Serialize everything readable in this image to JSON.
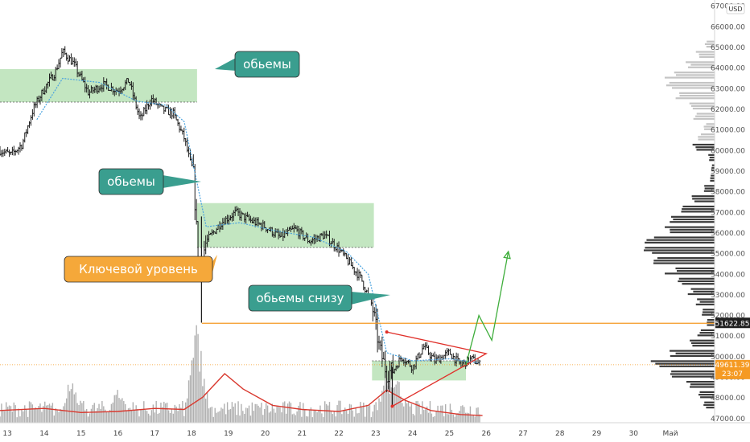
{
  "chart_data": {
    "type": "candlestick",
    "currency_label": "USD",
    "y_range": [
      46800,
      67300
    ],
    "y_ticks": [
      47000,
      48000,
      49000,
      50000,
      51000,
      52000,
      53000,
      54000,
      55000,
      56000,
      57000,
      58000,
      59000,
      60000,
      61000,
      62000,
      63000,
      64000,
      65000,
      66000,
      67000
    ],
    "x_range": [
      12.8,
      32.2
    ],
    "x_ticks": [
      {
        "day": 13,
        "label": "13"
      },
      {
        "day": 14,
        "label": "14"
      },
      {
        "day": 15,
        "label": "15"
      },
      {
        "day": 16,
        "label": "16"
      },
      {
        "day": 17,
        "label": "17"
      },
      {
        "day": 18,
        "label": "18"
      },
      {
        "day": 19,
        "label": "19"
      },
      {
        "day": 20,
        "label": "20"
      },
      {
        "day": 21,
        "label": "21"
      },
      {
        "day": 22,
        "label": "22"
      },
      {
        "day": 23,
        "label": "23"
      },
      {
        "day": 24,
        "label": "24"
      },
      {
        "day": 25,
        "label": "25"
      },
      {
        "day": 26,
        "label": "26"
      },
      {
        "day": 27,
        "label": "27"
      },
      {
        "day": 28,
        "label": "28"
      },
      {
        "day": 29,
        "label": "29"
      },
      {
        "day": 30,
        "label": "30"
      },
      {
        "day": 31,
        "label": "Май"
      }
    ],
    "price_path": [
      [
        12.8,
        60000
      ],
      [
        13.1,
        59800
      ],
      [
        13.4,
        60300
      ],
      [
        13.7,
        62000
      ],
      [
        14.0,
        63000
      ],
      [
        14.3,
        63800
      ],
      [
        14.5,
        64800
      ],
      [
        14.8,
        64200
      ],
      [
        15.2,
        62800
      ],
      [
        15.6,
        63200
      ],
      [
        16.0,
        62900
      ],
      [
        16.3,
        63400
      ],
      [
        16.6,
        61500
      ],
      [
        16.9,
        62500
      ],
      [
        17.2,
        62000
      ],
      [
        17.5,
        61800
      ],
      [
        17.8,
        60600
      ],
      [
        18.05,
        58800
      ],
      [
        18.2,
        54200
      ],
      [
        18.4,
        55600
      ],
      [
        18.8,
        56500
      ],
      [
        19.2,
        57000
      ],
      [
        19.6,
        56600
      ],
      [
        20.0,
        56300
      ],
      [
        20.4,
        55800
      ],
      [
        20.8,
        56200
      ],
      [
        21.2,
        55600
      ],
      [
        21.6,
        55900
      ],
      [
        22.0,
        55200
      ],
      [
        22.3,
        54500
      ],
      [
        22.6,
        53800
      ],
      [
        22.9,
        52500
      ],
      [
        23.1,
        50400
      ],
      [
        23.3,
        49200
      ],
      [
        23.5,
        49400
      ],
      [
        23.7,
        50000
      ],
      [
        24.0,
        49500
      ],
      [
        24.3,
        50500
      ],
      [
        24.6,
        49800
      ],
      [
        25.0,
        50200
      ],
      [
        25.3,
        49600
      ],
      [
        25.6,
        49900
      ],
      [
        25.85,
        49600
      ]
    ],
    "vwap_path": [
      [
        13.8,
        61500
      ],
      [
        14.5,
        63500
      ],
      [
        15.5,
        63300
      ],
      [
        16.5,
        62400
      ],
      [
        17.3,
        62200
      ],
      [
        17.8,
        61400
      ],
      [
        18.4,
        56300
      ],
      [
        19.3,
        56500
      ],
      [
        20.3,
        56100
      ],
      [
        21.3,
        55800
      ],
      [
        22.2,
        55100
      ],
      [
        22.8,
        54000
      ],
      [
        23.3,
        50200
      ],
      [
        24.0,
        49800
      ],
      [
        25.0,
        49900
      ],
      [
        25.8,
        49700
      ]
    ],
    "key_level": {
      "value": 51622.85,
      "label": "51622.85",
      "start_day": 18.28
    },
    "current_price": {
      "value": 49611.39,
      "label": "49611.39",
      "countdown": "23:07"
    },
    "zones": [
      {
        "x0": 12.8,
        "x1": 18.15,
        "y0": 62350,
        "y1": 63950,
        "dashed_y": 62350
      },
      {
        "x0": 18.15,
        "x1": 22.95,
        "y0": 55300,
        "y1": 57450,
        "dashed_y": 55300
      },
      {
        "x0": 22.9,
        "x1": 25.45,
        "y0": 48850,
        "y1": 49800,
        "dashed_y": 49800
      }
    ],
    "triangle": {
      "apex": [
        26.0,
        50150
      ],
      "top": [
        23.3,
        51200
      ],
      "bottom": [
        23.45,
        47600
      ]
    },
    "projection": [
      [
        25.45,
        49600
      ],
      [
        25.8,
        52000
      ],
      [
        26.15,
        50800
      ],
      [
        26.6,
        55100
      ]
    ],
    "volume_profile": {
      "levels": [
        47500,
        48000,
        48500,
        49000,
        49500,
        50000,
        50500,
        51000,
        51500,
        52000,
        52500,
        53000,
        53500,
        54000,
        54500,
        55000,
        55500,
        56000,
        56500,
        57000,
        57500,
        58000,
        58500,
        59000,
        59500,
        60000,
        60500,
        61000,
        61500,
        62000,
        62500,
        63000,
        63500,
        64000,
        64500,
        65000
      ],
      "widths": [
        0.14,
        0.22,
        0.35,
        0.55,
        0.9,
        0.62,
        0.34,
        0.22,
        0.12,
        0.16,
        0.24,
        0.34,
        0.48,
        0.62,
        0.78,
        1.0,
        0.92,
        0.72,
        0.56,
        0.42,
        0.3,
        0.14,
        0.06,
        0.04,
        0.08,
        0.28,
        0.22,
        0.14,
        0.28,
        0.36,
        0.48,
        0.7,
        0.62,
        0.36,
        0.24,
        0.12
      ],
      "upper_from_level": 60500
    },
    "volume": {
      "spike_days": [
        18.15,
        23.3,
        14.7,
        16.0,
        23.6
      ],
      "spike_heights": [
        0.95,
        0.55,
        0.45,
        0.35,
        0.42
      ],
      "baseline": 0.18,
      "ma_path": [
        [
          12.8,
          0.12
        ],
        [
          14.0,
          0.14
        ],
        [
          15.0,
          0.1
        ],
        [
          16.0,
          0.11
        ],
        [
          17.0,
          0.14
        ],
        [
          17.8,
          0.13
        ],
        [
          18.3,
          0.25
        ],
        [
          18.9,
          0.48
        ],
        [
          19.4,
          0.33
        ],
        [
          20.2,
          0.17
        ],
        [
          21.0,
          0.13
        ],
        [
          22.0,
          0.11
        ],
        [
          22.8,
          0.17
        ],
        [
          23.3,
          0.32
        ],
        [
          23.8,
          0.22
        ],
        [
          24.5,
          0.12
        ],
        [
          25.3,
          0.08
        ],
        [
          25.9,
          0.07
        ]
      ]
    },
    "annotations": [
      {
        "text": "обьемы",
        "style": "teal"
      },
      {
        "text": "обьемы",
        "style": "teal"
      },
      {
        "text": "Ключевой уровень",
        "style": "orange"
      },
      {
        "text": "обьемы снизу",
        "style": "teal"
      }
    ],
    "colors": {
      "candle": "#1c1c1c",
      "vwap": "#4aa3df",
      "zone": "#b9e2b6",
      "key_level": "#f59a23",
      "current_price_label": "#f59a23",
      "triangle": "#e0302a",
      "projection": "#3fae3c",
      "annotation_teal": "#3a9e8f",
      "annotation_orange": "#f5a83a",
      "profile_dark": "#3a3a3a",
      "profile_light": "#c4c4c4",
      "volume_bar": "#b0b0b0",
      "volume_ma": "#d9392f",
      "price_label_bg": "#1f1f1f"
    }
  }
}
